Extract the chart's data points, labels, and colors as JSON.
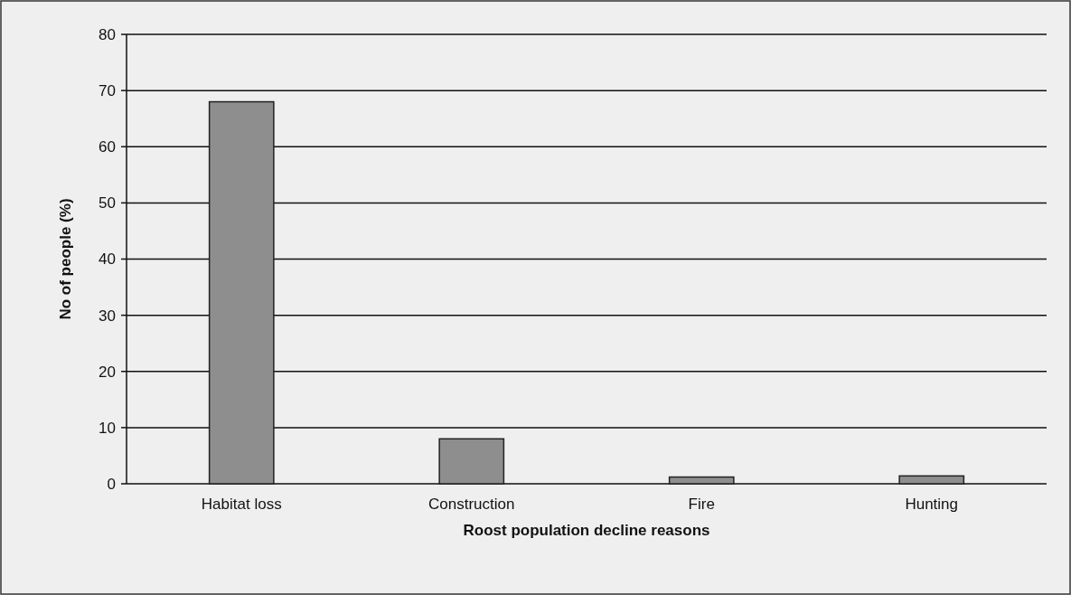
{
  "chart_data": {
    "type": "bar",
    "categories": [
      "Habitat loss",
      "Construction",
      "Fire",
      "Hunting"
    ],
    "values": [
      68,
      8,
      1.2,
      1.4
    ],
    "color": "#8e8e8e",
    "ylim": [
      0,
      80
    ],
    "yticks": [
      0,
      10,
      20,
      30,
      40,
      50,
      60,
      70,
      80
    ],
    "grid": "y",
    "xlabel": "Roost population decline reasons",
    "ylabel": "No of people (%)"
  }
}
